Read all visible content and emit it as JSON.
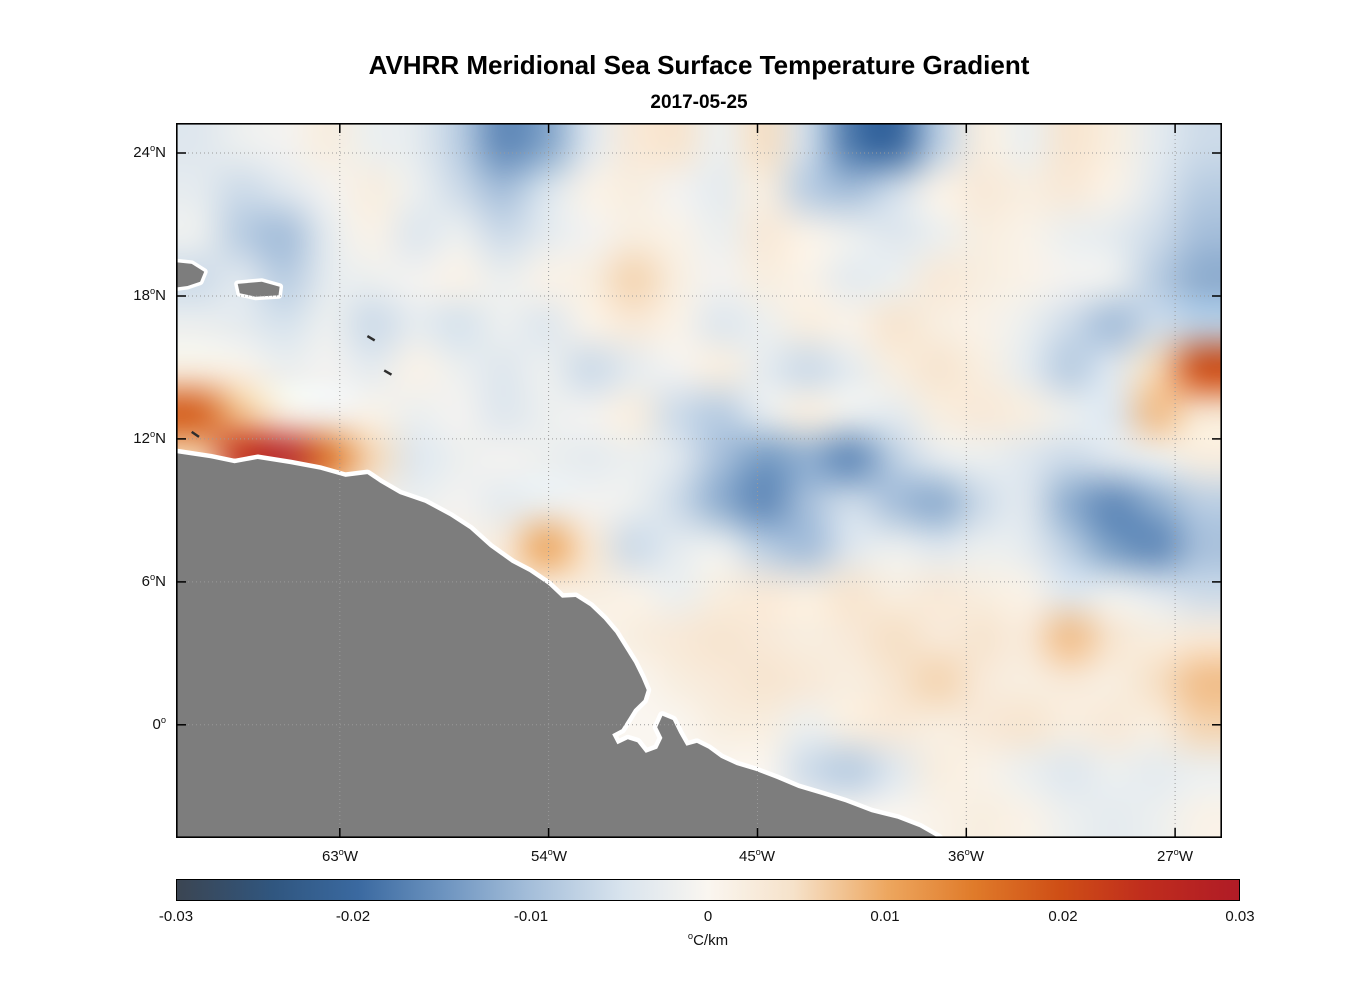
{
  "figure": {
    "background": "#ffffff"
  },
  "chart_data": {
    "type": "heatmap",
    "title": "AVHRR Meridional Sea Surface Temperature Gradient",
    "subtitle": "2017-05-25",
    "axes": {
      "lon_range": [
        -70.06,
        -24.98
      ],
      "lat_range": [
        25.26,
        -4.75
      ],
      "degree_sup": "o",
      "grid": "dotted",
      "grid_color": "#9a9a9a",
      "frame_color": "#000000",
      "x_ticks": [
        {
          "lon": -63,
          "deg": "63",
          "hemi": "W"
        },
        {
          "lon": -54,
          "deg": "54",
          "hemi": "W"
        },
        {
          "lon": -45,
          "deg": "45",
          "hemi": "W"
        },
        {
          "lon": -36,
          "deg": "36",
          "hemi": "W"
        },
        {
          "lon": -27,
          "deg": "27",
          "hemi": "W"
        }
      ],
      "y_ticks": [
        {
          "lat": 24,
          "deg": "24",
          "hemi": "N"
        },
        {
          "lat": 18,
          "deg": "18",
          "hemi": "N"
        },
        {
          "lat": 12,
          "deg": "12",
          "hemi": "N"
        },
        {
          "lat": 6,
          "deg": "6",
          "hemi": "N"
        },
        {
          "lat": 0,
          "deg": "0",
          "hemi": ""
        }
      ]
    },
    "colorbar": {
      "range": [
        -0.03,
        0.03
      ],
      "ticks": [
        -0.03,
        -0.02,
        -0.01,
        0,
        0.01,
        0.02,
        0.03
      ],
      "tick_labels": [
        "-0.03",
        "-0.02",
        "-0.01",
        "0",
        "0.01",
        "0.02",
        "0.03"
      ],
      "unit_sup": "o",
      "unit": "C/km",
      "colormap": [
        {
          "t": 0.0,
          "c": "#3b4552"
        },
        {
          "t": 0.09,
          "c": "#30567f"
        },
        {
          "t": 0.17,
          "c": "#3a69a0"
        },
        {
          "t": 0.25,
          "c": "#6c93bf"
        },
        {
          "t": 0.33,
          "c": "#a3bdd9"
        },
        {
          "t": 0.42,
          "c": "#d9e4ee"
        },
        {
          "t": 0.5,
          "c": "#faf6f0"
        },
        {
          "t": 0.58,
          "c": "#f6e2ca"
        },
        {
          "t": 0.67,
          "c": "#eda65e"
        },
        {
          "t": 0.75,
          "c": "#e07b2a"
        },
        {
          "t": 0.83,
          "c": "#cf4f16"
        },
        {
          "t": 0.91,
          "c": "#c02d1d"
        },
        {
          "t": 1.0,
          "c": "#b01b26"
        }
      ]
    },
    "land": {
      "color": "#7d7d7d",
      "coast_nodata_color": "#ffffff",
      "mainland": [
        [
          -0.03,
          0.455
        ],
        [
          0.033,
          0.469
        ],
        [
          0.056,
          0.476
        ],
        [
          0.078,
          0.47
        ],
        [
          0.109,
          0.477
        ],
        [
          0.138,
          0.485
        ],
        [
          0.162,
          0.495
        ],
        [
          0.183,
          0.491
        ],
        [
          0.195,
          0.503
        ],
        [
          0.214,
          0.519
        ],
        [
          0.238,
          0.531
        ],
        [
          0.262,
          0.55
        ],
        [
          0.281,
          0.568
        ],
        [
          0.3,
          0.593
        ],
        [
          0.321,
          0.615
        ],
        [
          0.338,
          0.628
        ],
        [
          0.356,
          0.646
        ],
        [
          0.369,
          0.664
        ],
        [
          0.382,
          0.663
        ],
        [
          0.396,
          0.676
        ],
        [
          0.409,
          0.694
        ],
        [
          0.42,
          0.713
        ],
        [
          0.429,
          0.734
        ],
        [
          0.438,
          0.755
        ],
        [
          0.445,
          0.776
        ],
        [
          0.45,
          0.793
        ],
        [
          0.447,
          0.807
        ],
        [
          0.438,
          0.82
        ],
        [
          0.432,
          0.834
        ],
        [
          0.426,
          0.848
        ],
        [
          0.417,
          0.855
        ],
        [
          0.422,
          0.869
        ],
        [
          0.432,
          0.862
        ],
        [
          0.441,
          0.866
        ],
        [
          0.449,
          0.881
        ],
        [
          0.46,
          0.875
        ],
        [
          0.465,
          0.86
        ],
        [
          0.46,
          0.845
        ],
        [
          0.465,
          0.829
        ],
        [
          0.475,
          0.835
        ],
        [
          0.481,
          0.853
        ],
        [
          0.488,
          0.871
        ],
        [
          0.498,
          0.867
        ],
        [
          0.509,
          0.875
        ],
        [
          0.521,
          0.888
        ],
        [
          0.536,
          0.898
        ],
        [
          0.554,
          0.906
        ],
        [
          0.574,
          0.917
        ],
        [
          0.595,
          0.93
        ],
        [
          0.618,
          0.94
        ],
        [
          0.64,
          0.95
        ],
        [
          0.665,
          0.964
        ],
        [
          0.69,
          0.973
        ],
        [
          0.711,
          0.985
        ],
        [
          0.729,
          1.0
        ],
        [
          0.74,
          1.06
        ],
        [
          -0.03,
          1.06
        ]
      ],
      "islands": [
        [
          [
            -0.03,
            0.19
          ],
          [
            0.015,
            0.197
          ],
          [
            0.027,
            0.208
          ],
          [
            0.023,
            0.222
          ],
          [
            0.011,
            0.228
          ],
          [
            -0.03,
            0.236
          ]
        ],
        [
          [
            0.059,
            0.225
          ],
          [
            0.082,
            0.222
          ],
          [
            0.099,
            0.229
          ],
          [
            0.098,
            0.241
          ],
          [
            0.076,
            0.243
          ],
          [
            0.061,
            0.238
          ]
        ]
      ],
      "small_island_marks": [
        [
          [
            0.183,
            0.298
          ],
          [
            0.19,
            0.304
          ]
        ],
        [
          [
            0.199,
            0.346
          ],
          [
            0.206,
            0.352
          ]
        ],
        [
          [
            0.015,
            0.432
          ],
          [
            0.022,
            0.439
          ]
        ]
      ]
    },
    "grid_values": {
      "unit": "0.001 degC/km",
      "cols": 24,
      "rows": 16,
      "values_milli": [
        [
          -4,
          -2,
          -1,
          2,
          -2,
          -3,
          -8,
          -16,
          -13,
          -4,
          3,
          4,
          -2,
          5,
          -6,
          -18,
          -20,
          -8,
          2,
          -2,
          4,
          2,
          -3,
          -6
        ],
        [
          -3,
          -6,
          -4,
          -1,
          2,
          -2,
          -6,
          -10,
          -5,
          1,
          2,
          -1,
          -3,
          2,
          -8,
          -10,
          -6,
          1,
          3,
          2,
          3,
          1,
          -4,
          -8
        ],
        [
          -2,
          -8,
          -10,
          -3,
          1,
          -4,
          -2,
          -6,
          -3,
          -1,
          2,
          1,
          -2,
          3,
          1,
          -2,
          -4,
          -2,
          2,
          1,
          -2,
          -3,
          -6,
          -10
        ],
        [
          -6,
          -4,
          -8,
          -3,
          -2,
          -1,
          1,
          -2,
          1,
          2,
          6,
          2,
          -1,
          2,
          1,
          -3,
          -2,
          3,
          2,
          1,
          -1,
          -2,
          -8,
          -12
        ],
        [
          -2,
          -3,
          -5,
          -2,
          -6,
          -3,
          -5,
          -2,
          -4,
          1,
          3,
          1,
          -4,
          -2,
          2,
          1,
          4,
          2,
          1,
          -2,
          -6,
          -10,
          -6,
          -8
        ],
        [
          2,
          1,
          -2,
          -1,
          -3,
          1,
          -2,
          -4,
          -2,
          -6,
          -3,
          -1,
          2,
          -3,
          -6,
          -3,
          2,
          4,
          2,
          -3,
          -8,
          -4,
          6,
          20
        ],
        [
          18,
          8,
          2,
          -1,
          1,
          -2,
          -1,
          -4,
          -2,
          -1,
          2,
          -6,
          -8,
          -3,
          2,
          -2,
          -3,
          2,
          3,
          2,
          -2,
          -4,
          8,
          4
        ],
        [
          6,
          24,
          28,
          16,
          6,
          -4,
          -2,
          -1,
          -2,
          -3,
          -2,
          -4,
          -10,
          -14,
          -12,
          -16,
          -8,
          -3,
          -2,
          -4,
          -6,
          -4,
          -2,
          2
        ],
        [
          0,
          0,
          2,
          1,
          -1,
          -2,
          -1,
          -3,
          -2,
          -1,
          -2,
          -6,
          -12,
          -16,
          -10,
          -6,
          -10,
          -12,
          -6,
          -4,
          -12,
          -16,
          -12,
          -8
        ],
        [
          0,
          0,
          0,
          0,
          0,
          2,
          1,
          3,
          10,
          4,
          -6,
          -3,
          -2,
          -8,
          -10,
          -4,
          -2,
          -4,
          -2,
          -3,
          -8,
          -14,
          -16,
          -10
        ],
        [
          0,
          0,
          0,
          0,
          0,
          0,
          0,
          2,
          1,
          2,
          1,
          -2,
          2,
          3,
          2,
          4,
          2,
          3,
          2,
          1,
          -4,
          -2,
          -4,
          -6
        ],
        [
          0,
          0,
          0,
          0,
          0,
          0,
          0,
          0,
          0,
          0,
          2,
          3,
          4,
          3,
          2,
          3,
          5,
          3,
          4,
          3,
          8,
          4,
          2,
          3
        ],
        [
          0,
          0,
          0,
          0,
          0,
          0,
          0,
          0,
          0,
          0,
          0,
          2,
          3,
          4,
          3,
          2,
          4,
          6,
          3,
          2,
          3,
          2,
          5,
          8
        ],
        [
          0,
          0,
          0,
          0,
          0,
          0,
          0,
          0,
          0,
          0,
          0,
          0,
          2,
          2,
          -2,
          2,
          3,
          2,
          3,
          4,
          2,
          3,
          2,
          6
        ],
        [
          0,
          0,
          0,
          0,
          0,
          0,
          0,
          0,
          0,
          0,
          0,
          0,
          0,
          0,
          -6,
          -8,
          -4,
          2,
          1,
          -2,
          -4,
          -2,
          -3,
          -2
        ],
        [
          0,
          0,
          0,
          0,
          0,
          0,
          0,
          0,
          0,
          0,
          0,
          0,
          0,
          0,
          0,
          0,
          0,
          1,
          2,
          1,
          -2,
          -3,
          -2,
          1
        ]
      ]
    }
  }
}
